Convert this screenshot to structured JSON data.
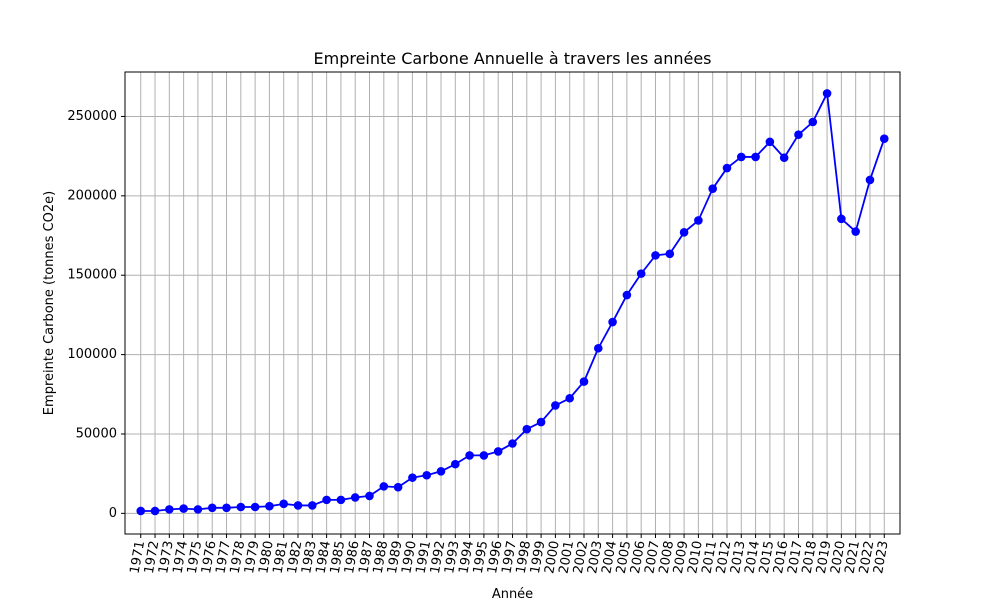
{
  "chart_data": {
    "type": "line",
    "title": "Empreinte Carbone Annuelle à travers les années",
    "xlabel": "Année",
    "ylabel": "Empreinte Carbone (tonnes CO2e)",
    "x": [
      1971,
      1972,
      1973,
      1974,
      1975,
      1976,
      1977,
      1978,
      1979,
      1980,
      1981,
      1982,
      1983,
      1984,
      1985,
      1986,
      1987,
      1988,
      1989,
      1990,
      1991,
      1992,
      1993,
      1994,
      1995,
      1996,
      1997,
      1998,
      1999,
      2000,
      2001,
      2002,
      2003,
      2004,
      2005,
      2006,
      2007,
      2008,
      2009,
      2010,
      2011,
      2012,
      2013,
      2014,
      2015,
      2016,
      2017,
      2018,
      2019,
      2020,
      2021,
      2022,
      2023
    ],
    "series": [
      {
        "values": [
          1500,
          1500,
          2500,
          3000,
          2500,
          3500,
          3500,
          4000,
          4000,
          4500,
          6000,
          5000,
          5000,
          8500,
          8500,
          10000,
          11000,
          17000,
          16500,
          22500,
          24000,
          26500,
          31000,
          36500,
          36500,
          39000,
          44000,
          53000,
          57500,
          68000,
          72500,
          83000,
          104000,
          120500,
          137500,
          151000,
          162500,
          163500,
          177000,
          184500,
          204500,
          217500,
          224500,
          224500,
          234000,
          224000,
          238500,
          246500,
          264500,
          185500,
          177500,
          210000,
          236000
        ],
        "color": "#0000ff"
      }
    ],
    "xlim": [
      1969.9,
      2024.1
    ],
    "ylim": [
      -13000,
      278000
    ],
    "yticks": [
      0,
      50000,
      100000,
      150000,
      200000,
      250000
    ],
    "grid": true,
    "legend": "none",
    "colors": {
      "line": "#0000ff",
      "grid": "#b0b0b0",
      "axes": "#000000"
    }
  }
}
